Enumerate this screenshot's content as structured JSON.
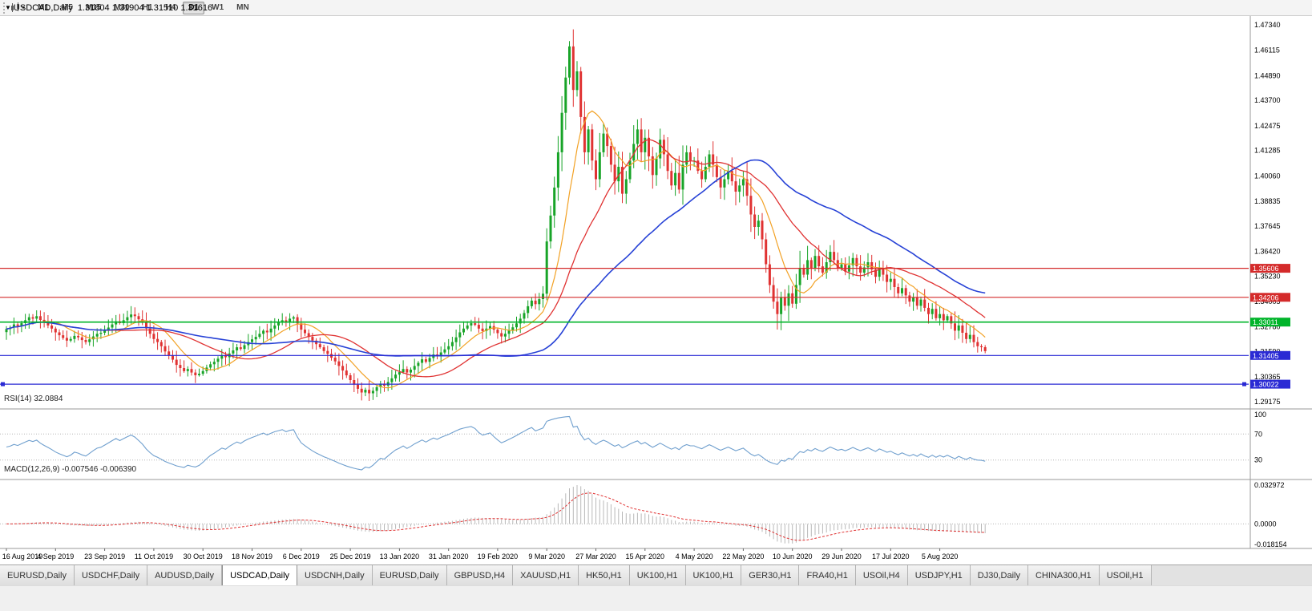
{
  "icons": {
    "title_marker": "▼",
    "toolbar_dropdown": "▾"
  },
  "toolbar": {
    "timeframes": [
      "M1",
      "M5",
      "M15",
      "M30",
      "H1",
      "H4",
      "D1",
      "W1",
      "MN"
    ],
    "active_timeframe": "D1"
  },
  "chart": {
    "title_symbol": "USDCAD,Daily",
    "title_ohlc": "1.31804 1.31904 1.31510 1.31616",
    "price_axis_labels": [
      "1.47340",
      "1.46115",
      "1.44890",
      "1.43700",
      "1.42475",
      "1.41285",
      "1.40060",
      "1.38835",
      "1.37645",
      "1.36420",
      "1.35230",
      "1.34005",
      "1.32780",
      "1.31590",
      "1.30365",
      "1.29175"
    ]
  },
  "rsi": {
    "label": "RSI(14) 32.0884",
    "period": 14,
    "current": 32.0884,
    "axis_labels": [
      "100",
      "70",
      "30"
    ],
    "levels": [
      70,
      30
    ]
  },
  "macd": {
    "label": "MACD(12,26,9) -0.007546 -0.006390",
    "fast": 12,
    "slow": 26,
    "signal": 9,
    "current_macd": -0.007546,
    "current_signal": -0.00639,
    "axis_labels": [
      "0.032972",
      "0.0000",
      "-0.018154"
    ]
  },
  "tabs": {
    "active_index": 3,
    "items": [
      "EURUSD,Daily",
      "USDCHF,Daily",
      "AUDUSD,Daily",
      "USDCAD,Daily",
      "USDCNH,Daily",
      "EURUSD,Daily",
      "GBPUSD,H4",
      "XAUUSD,H1",
      "HK50,H1",
      "UK100,H1",
      "UK100,H1",
      "GER30,H1",
      "FRA40,H1",
      "USOil,H4",
      "USDJPY,H1",
      "DJ30,Daily",
      "CHINA300,H1",
      "USOil,H1"
    ]
  },
  "colors": {
    "candle_up": "#18a428",
    "candle_down": "#e03232",
    "ma_fast": "#f2a124",
    "ma_mid": "#e03232",
    "ma_slow": "#2742d6",
    "rsi_line": "#6f9fce",
    "macd_hist": "#b8b8b8",
    "macd_signal": "#e03232",
    "axis_text": "#000000",
    "tag_text": "#ffffff",
    "separator": "#9a9a9a",
    "level_dots": "#b5b5b5"
  },
  "chart_data": {
    "type": "candlestick",
    "symbol": "USDCAD",
    "timeframe": "Daily",
    "title": "USDCAD,Daily 1.31804 1.31904 1.31510 1.31616",
    "ylim": [
      1.29175,
      1.4734
    ],
    "x_tick_step": 13,
    "x_tick_labels": [
      "16 Aug 2019",
      "4 Sep 2019",
      "23 Sep 2019",
      "11 Oct 2019",
      "30 Oct 2019",
      "18 Nov 2019",
      "6 Dec 2019",
      "25 Dec 2019",
      "13 Jan 2020",
      "31 Jan 2020",
      "19 Feb 2020",
      "9 Mar 2020",
      "27 Mar 2020",
      "15 Apr 2020",
      "4 May 2020",
      "22 May 2020",
      "10 Jun 2020",
      "29 Jun 2020",
      "17 Jul 2020",
      "5 Aug 2020"
    ],
    "closes": [
      1.3268,
      1.3275,
      1.329,
      1.3282,
      1.3296,
      1.331,
      1.3325,
      1.3318,
      1.333,
      1.3312,
      1.3298,
      1.3285,
      1.327,
      1.3252,
      1.3238,
      1.3225,
      1.3212,
      1.322,
      1.3235,
      1.3228,
      1.3215,
      1.3205,
      1.3218,
      1.3232,
      1.3245,
      1.325,
      1.3262,
      1.3275,
      1.329,
      1.3305,
      1.3296,
      1.331,
      1.3325,
      1.3338,
      1.333,
      1.3315,
      1.3298,
      1.327,
      1.3245,
      1.322,
      1.3205,
      1.3185,
      1.316,
      1.314,
      1.312,
      1.3095,
      1.308,
      1.3065,
      1.3075,
      1.3058,
      1.3045,
      1.3052,
      1.3065,
      1.3082,
      1.3098,
      1.311,
      1.3125,
      1.314,
      1.3132,
      1.315,
      1.3165,
      1.318,
      1.3172,
      1.319,
      1.3205,
      1.3218,
      1.323,
      1.3245,
      1.326,
      1.3252,
      1.327,
      1.3285,
      1.3298,
      1.331,
      1.3302,
      1.3318,
      1.3325,
      1.3295,
      1.3265,
      1.3248,
      1.323,
      1.3212,
      1.3195,
      1.318,
      1.3162,
      1.3148,
      1.313,
      1.3112,
      1.309,
      1.3068,
      1.3045,
      1.3022,
      1.3,
      1.298,
      1.2962,
      1.2975,
      1.2958,
      1.297,
      1.2988,
      1.3005,
      1.2995,
      1.3012,
      1.303,
      1.3048,
      1.306,
      1.3075,
      1.3058,
      1.3072,
      1.309,
      1.3105,
      1.3122,
      1.311,
      1.3128,
      1.3145,
      1.3138,
      1.3155,
      1.317,
      1.3185,
      1.3205,
      1.3228,
      1.3252,
      1.327,
      1.3285,
      1.3296,
      1.3288,
      1.327,
      1.3258,
      1.327,
      1.3282,
      1.3265,
      1.3248,
      1.3232,
      1.3245,
      1.326,
      1.3276,
      1.3295,
      1.3318,
      1.3345,
      1.3378,
      1.3405,
      1.3388,
      1.3412,
      1.3438,
      1.369,
      1.3815,
      1.395,
      1.412,
      1.431,
      1.448,
      1.463,
      1.442,
      1.451,
      1.429,
      1.412,
      1.423,
      1.408,
      1.399,
      1.412,
      1.421,
      1.415,
      1.406,
      1.398,
      1.405,
      1.392,
      1.399,
      1.408,
      1.416,
      1.423,
      1.412,
      1.419,
      1.41,
      1.401,
      1.409,
      1.418,
      1.411,
      1.403,
      1.396,
      1.402,
      1.394,
      1.406,
      1.412,
      1.408,
      1.408,
      1.403,
      1.399,
      1.405,
      1.411,
      1.406,
      1.4,
      1.395,
      1.399,
      1.403,
      1.398,
      1.393,
      1.396,
      1.399,
      1.391,
      1.382,
      1.376,
      1.379,
      1.37,
      1.358,
      1.348,
      1.34,
      1.334,
      1.342,
      1.338,
      1.344,
      1.339,
      1.348,
      1.356,
      1.353,
      1.36,
      1.356,
      1.362,
      1.357,
      1.354,
      1.359,
      1.364,
      1.36,
      1.356,
      1.358,
      1.3545,
      1.3575,
      1.361,
      1.357,
      1.354,
      1.3565,
      1.359,
      1.3555,
      1.352,
      1.356,
      1.353,
      1.3495,
      1.351,
      1.347,
      1.344,
      1.3465,
      1.343,
      1.34,
      1.342,
      1.338,
      1.341,
      1.337,
      1.334,
      1.3365,
      1.332,
      1.334,
      1.331,
      1.333,
      1.3295,
      1.326,
      1.3285,
      1.325,
      1.322,
      1.324,
      1.3205,
      1.3185,
      1.31804,
      1.31616
    ],
    "last_candle": {
      "o": 1.31804,
      "h": 1.31904,
      "l": 1.3151,
      "c": 1.31616
    },
    "overlays": [
      {
        "name": "ma-fast",
        "period": 10
      },
      {
        "name": "ma-mid",
        "period": 25
      },
      {
        "name": "ma-slow",
        "period": 55
      }
    ],
    "hlines": [
      {
        "label": "1.35606",
        "value": 1.35606,
        "color": "#d42a2a",
        "selected": false
      },
      {
        "label": "1.34206",
        "value": 1.34206,
        "color": "#d42a2a",
        "selected": false
      },
      {
        "label": "1.33011",
        "value": 1.33011,
        "color": "#00b42a",
        "selected": false
      },
      {
        "label": "1.31405",
        "value": 1.31405,
        "color": "#2a2ad4",
        "selected": false
      },
      {
        "label": "1.30022",
        "value": 1.30022,
        "color": "#2a2ad4",
        "selected": true
      }
    ],
    "indicators": {
      "rsi": {
        "period": 14,
        "current": 32.0884,
        "levels": [
          70,
          30
        ],
        "ylim": [
          0,
          100
        ]
      },
      "macd": {
        "fast": 12,
        "slow": 26,
        "signal": 9,
        "current_macd": -0.007546,
        "current_signal": -0.00639,
        "ylim": [
          -0.018154,
          0.032972
        ]
      }
    }
  }
}
